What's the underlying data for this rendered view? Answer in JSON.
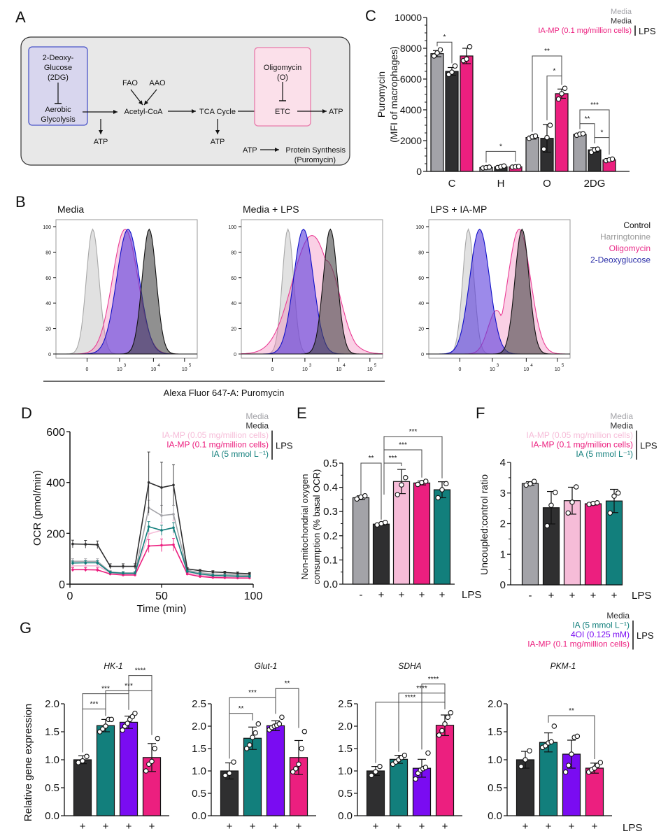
{
  "colors": {
    "media_gray": "#a3a3a8",
    "media_lps_black": "#2f2f30",
    "iamp_low_pink": "#f6bcd8",
    "iamp_high_magenta": "#ec1f7f",
    "ia_teal": "#127f7c",
    "oi4_purple": "#7a0cf2",
    "control_black": "#111111",
    "harringtonine_gray": "#9a9a9a",
    "oligomycin_pink": "#ea2d8a",
    "deoxyglucose_blue": "#2b2fa8",
    "box_bg": "#e8e8e8",
    "box_2dg_bg": "#d8d6ee",
    "box_2dg_border": "#4a55c8",
    "box_oligo_bg": "#fbe0ea",
    "box_oligo_border": "#e87aaa"
  },
  "panels": {
    "A": {
      "letter": "A",
      "box_2dg": {
        "title_lines": [
          "2-Deoxy-",
          "Glucose",
          "(2DG)"
        ],
        "target_lines": [
          "Aerobic",
          "Glycolysis"
        ]
      },
      "fao": "FAO",
      "aao": "AAO",
      "acetyl_coa": "Acetyl-CoA",
      "tca": "TCA Cycle",
      "box_oligo": {
        "title_lines": [
          "Oligomycin",
          "(O)"
        ],
        "target": "ETC"
      },
      "atp": "ATP",
      "protein_synthesis_lines": [
        "Protein Synthesis",
        "(Puromycin)"
      ]
    },
    "B": {
      "letter": "B",
      "histogram_titles": [
        "Media",
        "Media + LPS",
        "LPS + IA-MP"
      ],
      "y_ticks": [
        "0",
        "20",
        "40",
        "60",
        "80",
        "100"
      ],
      "x_ticks": [
        "0",
        "10",
        "10",
        "10"
      ],
      "x_tick_exponents": [
        "",
        "3",
        "4",
        "5"
      ],
      "x_axis_label": "Alexa Fluor 647-A: Puromycin",
      "legend": [
        "Control",
        "Harringtonine",
        "Oligomycin",
        "2-Deoxyglucose"
      ]
    },
    "C": {
      "letter": "C"
    },
    "D": {
      "letter": "D"
    },
    "E": {
      "letter": "E"
    },
    "F": {
      "letter": "F"
    },
    "G": {
      "letter": "G",
      "lps_label": "LPS"
    }
  },
  "chart_data": [
    {
      "id": "C",
      "type": "bar",
      "ylabel": "Puromycin (MFI of macrophages)",
      "ylabel_lines": [
        "Puromycin",
        "(MFI of macrophages)"
      ],
      "ylim": [
        0,
        10000
      ],
      "yticks": [
        0,
        2000,
        4000,
        6000,
        8000,
        10000
      ],
      "categories": [
        "C",
        "H",
        "O",
        "2DG"
      ],
      "legend": {
        "items": [
          "Media",
          "Media",
          "IA-MP (0.1 mg/million cells)"
        ],
        "bracket_label": "LPS",
        "placement": "top-right"
      },
      "series": [
        {
          "name": "Media",
          "values": [
            7650,
            250,
            2200,
            2400
          ],
          "err": [
            200,
            50,
            100,
            80
          ],
          "points": [
            [
              7500,
              7700,
              7900
            ],
            [
              220,
              250,
              280
            ],
            [
              2150,
              2250,
              2300
            ],
            [
              2350,
              2420,
              2450
            ]
          ]
        },
        {
          "name": "Media + LPS",
          "values": [
            6500,
            300,
            2150,
            1400
          ],
          "err": [
            250,
            60,
            900,
            150
          ],
          "points": [
            [
              6300,
              6450,
              6850
            ],
            [
              250,
              300,
              350
            ],
            [
              1450,
              2200,
              3000
            ],
            [
              1250,
              1400,
              1450
            ]
          ]
        },
        {
          "name": "IA-MP (0.1 mg/million cells) + LPS",
          "values": [
            7500,
            300,
            5050,
            750
          ],
          "err": [
            500,
            50,
            300,
            80
          ],
          "points": [
            [
              7200,
              7300,
              8100
            ],
            [
              280,
              300,
              320
            ],
            [
              4700,
              5050,
              5400
            ],
            [
              700,
              750,
              800
            ]
          ]
        }
      ],
      "significance": [
        {
          "cat": 0,
          "from": 0,
          "to": 1,
          "label": "*"
        },
        {
          "cat": 1,
          "from": 0,
          "to": 2,
          "label": "*"
        },
        {
          "cat": 2,
          "from": 0,
          "to": 2,
          "label": "**"
        },
        {
          "cat": 2,
          "from": 1,
          "to": 2,
          "label": "*"
        },
        {
          "cat": 3,
          "from": 0,
          "to": 2,
          "label": "***"
        },
        {
          "cat": 3,
          "from": 0,
          "to": 1,
          "label": "**"
        },
        {
          "cat": 3,
          "from": 1,
          "to": 2,
          "label": "*"
        }
      ]
    },
    {
      "id": "D",
      "type": "line",
      "xlabel": "Time (min)",
      "ylabel": "OCR (pmol/min)",
      "xlim": [
        0,
        100
      ],
      "ylim": [
        0,
        600
      ],
      "xticks": [
        0,
        50,
        100
      ],
      "yticks": [
        0,
        200,
        400,
        600
      ],
      "x": [
        1.5,
        8.5,
        15,
        22,
        29,
        35.5,
        43,
        50,
        56.5,
        64,
        71,
        78,
        84.5,
        91.5,
        98
      ],
      "legend": {
        "items": [
          "Media",
          "Media",
          "IA-MP (0.05 mg/million cells)",
          "IA-MP (0.1 mg/million cells)",
          "IA (5 mmol L⁻¹)"
        ],
        "bracket_label": "LPS",
        "placement": "top-right"
      },
      "series": [
        {
          "name": "Media",
          "values": [
            90,
            90,
            90,
            48,
            44,
            44,
            300,
            270,
            275,
            55,
            45,
            40,
            38,
            36,
            35
          ],
          "err": [
            10,
            10,
            10,
            6,
            6,
            6,
            30,
            40,
            35,
            5,
            5,
            5,
            5,
            5,
            5
          ]
        },
        {
          "name": "Media + LPS",
          "values": [
            158,
            157,
            155,
            70,
            70,
            70,
            400,
            380,
            390,
            60,
            53,
            48,
            46,
            43,
            41
          ],
          "err": [
            15,
            15,
            15,
            10,
            10,
            10,
            120,
            100,
            80,
            5,
            5,
            5,
            5,
            5,
            5
          ]
        },
        {
          "name": "IA-MP (0.05 mg/million cells) + LPS",
          "values": [
            72,
            72,
            72,
            45,
            40,
            40,
            198,
            212,
            222,
            45,
            35,
            30,
            30,
            28,
            28
          ],
          "err": [
            8,
            8,
            8,
            5,
            5,
            5,
            30,
            30,
            30,
            5,
            5,
            5,
            5,
            5,
            5
          ]
        },
        {
          "name": "IA-MP (0.1 mg/million cells) + LPS",
          "values": [
            57,
            57,
            56,
            40,
            36,
            36,
            150,
            153,
            155,
            40,
            30,
            26,
            25,
            24,
            24
          ],
          "err": [
            8,
            8,
            8,
            5,
            5,
            5,
            25,
            25,
            25,
            5,
            5,
            5,
            5,
            5,
            5
          ]
        },
        {
          "name": "IA (5 mmol L⁻¹) + LPS",
          "values": [
            83,
            84,
            84,
            46,
            43,
            43,
            226,
            212,
            222,
            50,
            40,
            34,
            33,
            31,
            30
          ],
          "err": [
            8,
            8,
            8,
            5,
            5,
            5,
            20,
            20,
            20,
            5,
            5,
            5,
            5,
            5,
            5
          ]
        }
      ]
    },
    {
      "id": "E",
      "type": "bar",
      "ylabel": "Non-mitochondrial oxygen consumption (% basal OCR)",
      "ylabel_lines": [
        "Non-mitochondrial oxygen",
        "consumption (% basal OCR)"
      ],
      "ylim": [
        0,
        0.5
      ],
      "yticks": [
        "0.0",
        "0.1",
        "0.2",
        "0.3",
        "0.4",
        "0.5"
      ],
      "categories": [
        "-",
        "+",
        "+",
        "+",
        "+"
      ],
      "x_row_label": "LPS",
      "series": [
        {
          "name": "groups",
          "values": [
            0.357,
            0.248,
            0.424,
            0.418,
            0.39
          ],
          "err": [
            0.008,
            0.004,
            0.05,
            0.008,
            0.033
          ],
          "points": [
            [
              0.352,
              0.36,
              0.365
            ],
            [
              0.245,
              0.25,
              0.255
            ],
            [
              0.37,
              0.41,
              0.44
            ],
            [
              0.412,
              0.42,
              0.425
            ],
            [
              0.357,
              0.39,
              0.415
            ]
          ]
        }
      ],
      "significance": [
        {
          "from": 0,
          "to": 1,
          "label": "**"
        },
        {
          "from": 1,
          "to": 2,
          "label": "***"
        },
        {
          "from": 1,
          "to": 3,
          "label": "***"
        },
        {
          "from": 1,
          "to": 4,
          "label": "***"
        }
      ]
    },
    {
      "id": "F",
      "type": "bar",
      "ylabel": "Uncoupled:control ratio",
      "ylim": [
        0,
        4
      ],
      "yticks": [
        0,
        1,
        2,
        3,
        4
      ],
      "categories": [
        "-",
        "+",
        "+",
        "+",
        "+"
      ],
      "x_row_label": "LPS",
      "legend": {
        "items": [
          "Media",
          "Media",
          "IA-MP (0.05 mg/million cells)",
          "IA-MP (0.1 mg/million cells)",
          "IA (5 mmol L⁻¹)"
        ],
        "bracket_label": "LPS",
        "placement": "top-right"
      },
      "series": [
        {
          "name": "groups",
          "values": [
            3.31,
            2.52,
            2.75,
            2.65,
            2.74
          ],
          "err": [
            0.06,
            0.53,
            0.44,
            0.04,
            0.38
          ],
          "points": [
            [
              3.26,
              3.3,
              3.38
            ],
            [
              1.93,
              2.6,
              3.02
            ],
            [
              2.35,
              2.7,
              3.2
            ],
            [
              2.63,
              2.66,
              2.68
            ],
            [
              2.35,
              2.9,
              3.0
            ]
          ]
        }
      ]
    },
    {
      "id": "G-HK-1",
      "type": "bar",
      "title": "HK-1",
      "ylabel": "Relative gene expression",
      "ylim": [
        0,
        2.0
      ],
      "yticks": [
        "0.0",
        "0.5",
        "1.0",
        "1.5",
        "2.0"
      ],
      "categories": [
        "+",
        "+",
        "+",
        "+"
      ],
      "series": [
        {
          "name": "groups",
          "values": [
            1.0,
            1.61,
            1.67,
            1.04
          ],
          "err": [
            0.07,
            0.11,
            0.11,
            0.25
          ],
          "points": [
            [
              0.95,
              0.98,
              1.06
            ],
            [
              1.5,
              1.55,
              1.6,
              1.72,
              1.72
            ],
            [
              1.53,
              1.6,
              1.65,
              1.72,
              1.77,
              1.83
            ],
            [
              0.8,
              0.92,
              0.97,
              1.2,
              1.38
            ]
          ]
        }
      ],
      "significance": [
        {
          "from": 0,
          "to": 1,
          "label": "***"
        },
        {
          "from": 0,
          "to": 2,
          "label": "***"
        },
        {
          "from": 1,
          "to": 3,
          "label": "***"
        },
        {
          "from": 2,
          "to": 3,
          "label": "****"
        }
      ]
    },
    {
      "id": "G-Glut-1",
      "type": "bar",
      "title": "Glut-1",
      "ylim": [
        0,
        2.5
      ],
      "yticks": [
        "0.0",
        "0.5",
        "1.0",
        "1.5",
        "2.0",
        "2.5"
      ],
      "categories": [
        "+",
        "+",
        "+",
        "+"
      ],
      "series": [
        {
          "name": "groups",
          "values": [
            1.0,
            1.73,
            2.01,
            1.3
          ],
          "err": [
            0.18,
            0.25,
            0.11,
            0.38
          ],
          "points": [
            [
              0.9,
              0.95,
              1.2
            ],
            [
              1.5,
              1.58,
              1.75,
              1.85,
              2.05
            ],
            [
              1.92,
              1.97,
              2.0,
              2.02,
              2.05,
              2.2
            ],
            [
              0.98,
              1.05,
              1.15,
              1.5,
              1.88
            ]
          ]
        }
      ],
      "significance": [
        {
          "from": 0,
          "to": 1,
          "label": "**"
        },
        {
          "from": 0,
          "to": 2,
          "label": "***"
        },
        {
          "from": 2,
          "to": 3,
          "label": "**"
        }
      ]
    },
    {
      "id": "G-SDHA",
      "type": "bar",
      "title": "SDHA",
      "ylim": [
        0,
        2.5
      ],
      "yticks": [
        "0.0",
        "0.5",
        "1.0",
        "1.5",
        "2.0",
        "2.5"
      ],
      "categories": [
        "+",
        "+",
        "+",
        "+"
      ],
      "series": [
        {
          "name": "groups",
          "values": [
            1.0,
            1.26,
            1.06,
            2.02
          ],
          "err": [
            0.1,
            0.09,
            0.2,
            0.23
          ],
          "points": [
            [
              0.9,
              0.98,
              1.1
            ],
            [
              1.15,
              1.2,
              1.25,
              1.3,
              1.35
            ],
            [
              0.82,
              0.95,
              1.02,
              1.05,
              1.08,
              1.4
            ],
            [
              1.8,
              1.9,
              2.05,
              2.2,
              2.3
            ]
          ]
        }
      ],
      "significance": [
        {
          "from": 0,
          "to": 3,
          "label": "****"
        },
        {
          "from": 1,
          "to": 3,
          "label": "****"
        },
        {
          "from": 2,
          "to": 3,
          "label": "****"
        }
      ]
    },
    {
      "id": "G-PKM-1",
      "type": "bar",
      "title": "PKM-1",
      "ylim": [
        0,
        2.0
      ],
      "yticks": [
        "0.0",
        "0.5",
        "1.0",
        "1.5",
        "2.0"
      ],
      "categories": [
        "+",
        "+",
        "+",
        "+"
      ],
      "x_row_label": "LPS",
      "legend": {
        "items": [
          "Media",
          "IA (5 mmol L⁻¹)",
          "4OI (0.125 mM)",
          "IA-MP (0.1 mg/million cells)"
        ],
        "bracket_label": "LPS",
        "placement": "top-right"
      },
      "series": [
        {
          "name": "groups",
          "values": [
            1.0,
            1.31,
            1.1,
            0.85
          ],
          "err": [
            0.15,
            0.17,
            0.25,
            0.09
          ],
          "points": [
            [
              0.88,
              1.0,
              1.16
            ],
            [
              1.22,
              1.25,
              1.3,
              1.32,
              1.6
            ],
            [
              0.78,
              0.9,
              1.1,
              1.4,
              1.42
            ],
            [
              0.78,
              0.82,
              0.85,
              0.9,
              0.95
            ]
          ]
        }
      ],
      "significance": [
        {
          "from": 1,
          "to": 3,
          "label": "**"
        }
      ]
    }
  ]
}
